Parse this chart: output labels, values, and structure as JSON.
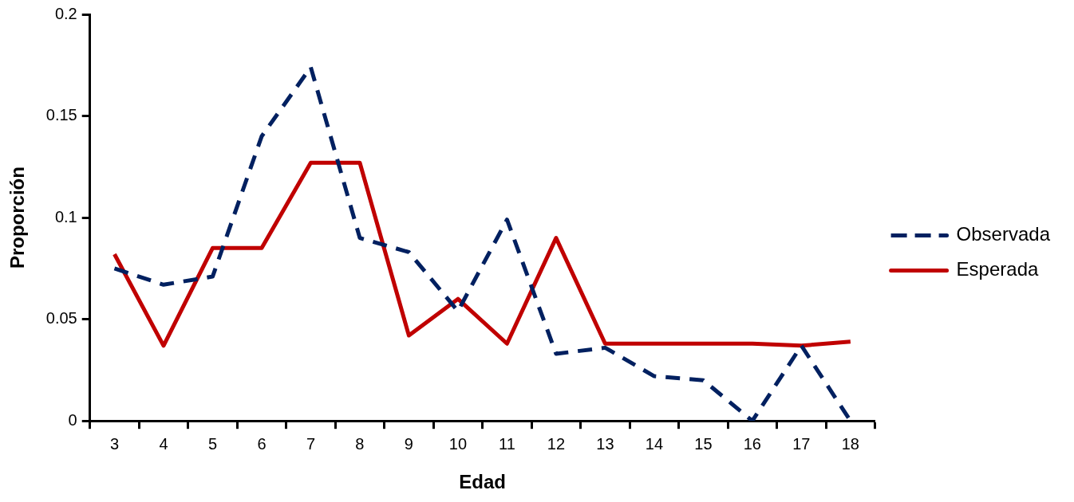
{
  "chart_data": {
    "type": "line",
    "xlabel": "Edad",
    "ylabel": "Proporción",
    "categories": [
      "3",
      "4",
      "5",
      "6",
      "7",
      "8",
      "9",
      "10",
      "11",
      "12",
      "13",
      "14",
      "15",
      "16",
      "17",
      "18"
    ],
    "series": [
      {
        "name": "Observada",
        "color": "#002060",
        "line_style": "dashed",
        "values": [
          0.075,
          0.067,
          0.071,
          0.14,
          0.174,
          0.09,
          0.083,
          0.054,
          0.099,
          0.033,
          0.036,
          0.022,
          0.02,
          0,
          0.037,
          0
        ]
      },
      {
        "name": "Esperada",
        "color": "#c00000",
        "line_style": "solid",
        "values": [
          0.082,
          0.037,
          0.085,
          0.085,
          0.127,
          0.127,
          0.042,
          0.06,
          0.038,
          0.09,
          0.038,
          0.038,
          0.038,
          0.038,
          0.037,
          0.039
        ]
      }
    ],
    "ylim": [
      0,
      0.2
    ],
    "yticks": [
      0,
      0.05,
      0.1,
      0.15,
      0.2
    ],
    "grid": false,
    "legend": "right",
    "marker": "none"
  }
}
